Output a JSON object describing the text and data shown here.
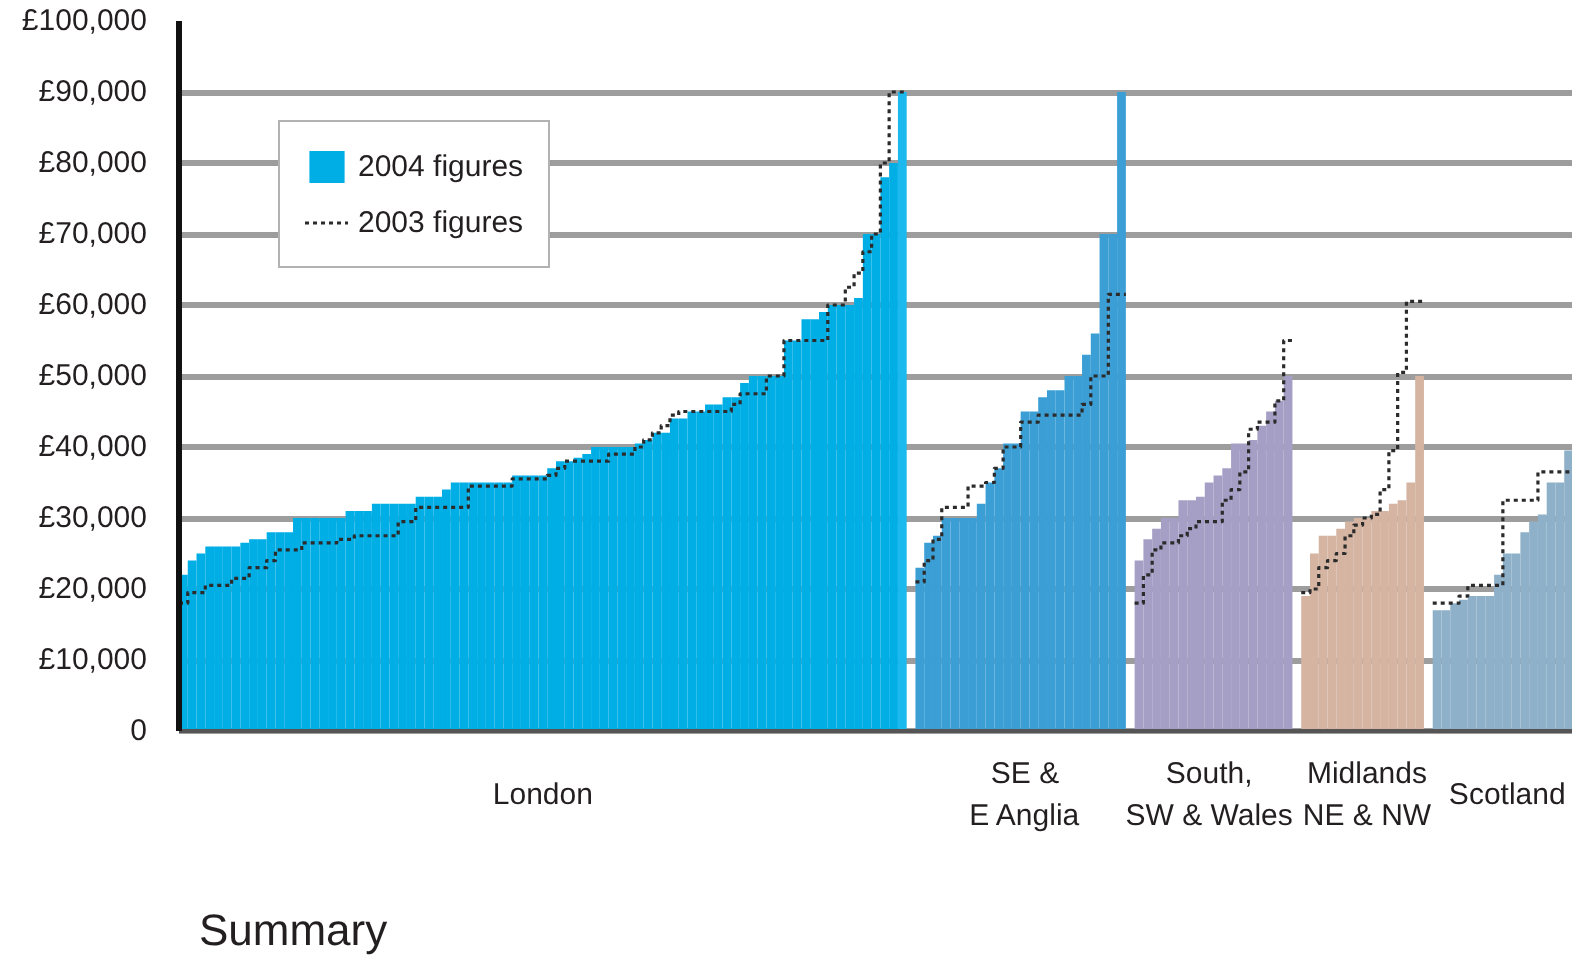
{
  "chart_data": {
    "type": "bar",
    "categories": [
      null,
      null,
      null,
      null,
      null,
      null,
      null,
      null,
      null,
      null,
      null,
      null,
      null,
      null,
      null,
      null,
      null,
      null,
      null,
      null,
      null,
      null,
      null,
      null,
      null,
      null,
      null,
      null,
      null,
      null,
      null,
      null,
      null,
      null,
      null,
      null,
      null,
      null,
      null,
      null,
      null,
      "London",
      null,
      null,
      null,
      null,
      null,
      null,
      null,
      null,
      null,
      null,
      null,
      null,
      null,
      null,
      null,
      null,
      null,
      null,
      null,
      null,
      null,
      null,
      null,
      null,
      null,
      null,
      null,
      null,
      null,
      null,
      null,
      null,
      null,
      null,
      null,
      null,
      null,
      null,
      null,
      null,
      null,
      null,
      null,
      null,
      null,
      null,
      null,
      null,
      null,
      null,
      null,
      null,
      null,
      null,
      "SE &\nE Anglia",
      null,
      null,
      null,
      null,
      null,
      null,
      null,
      null,
      null,
      null,
      null,
      null,
      null,
      null,
      null,
      null,
      null,
      null,
      null,
      null,
      "South,\nSW & Wales",
      null,
      null,
      null,
      null,
      null,
      null,
      null,
      null,
      null,
      null,
      null,
      null,
      null,
      null,
      null,
      null,
      null,
      "Midlands\nNE & NW",
      null,
      null,
      null,
      null,
      null,
      null,
      null,
      null,
      null,
      null,
      null,
      null,
      null,
      null,
      null,
      "Scotland",
      null,
      null,
      null,
      null,
      null,
      null,
      null
    ],
    "series": [
      {
        "name": "2004 figures",
        "colors": [
          "#00aee6",
          "#00aee6",
          "#00aee6",
          "#00aee6",
          "#00aee6",
          "#00aee6",
          "#00aee6",
          "#00aee6",
          "#00aee6",
          "#00aee6",
          "#00aee6",
          "#00aee6",
          "#00aee6",
          "#00aee6",
          "#00aee6",
          "#00aee6",
          "#00aee6",
          "#00aee6",
          "#00aee6",
          "#00aee6",
          "#00aee6",
          "#00aee6",
          "#00aee6",
          "#00aee6",
          "#00aee6",
          "#00aee6",
          "#00aee6",
          "#00aee6",
          "#00aee6",
          "#00aee6",
          "#00aee6",
          "#00aee6",
          "#00aee6",
          "#00aee6",
          "#00aee6",
          "#00aee6",
          "#00aee6",
          "#00aee6",
          "#00aee6",
          "#00aee6",
          "#00aee6",
          "#00aee6",
          "#00aee6",
          "#00aee6",
          "#00aee6",
          "#00aee6",
          "#00aee6",
          "#00aee6",
          "#00aee6",
          "#00aee6",
          "#00aee6",
          "#00aee6",
          "#00aee6",
          "#00aee6",
          "#00aee6",
          "#00aee6",
          "#00aee6",
          "#00aee6",
          "#00aee6",
          "#00aee6",
          "#00aee6",
          "#00aee6",
          "#00aee6",
          "#00aee6",
          "#00aee6",
          "#00aee6",
          "#00aee6",
          "#00aee6",
          "#00aee6",
          "#00aee6",
          "#00aee6",
          "#00aee6",
          "#00aee6",
          "#00aee6",
          "#00aee6",
          "#00aee6",
          "#00aee6",
          "#00aee6",
          "#00aee6",
          "#00aee6",
          "#00aee6",
          "#00aee6",
          "#1cb9ee",
          null,
          "#3b9fd5",
          "#3b9fd5",
          "#3b9fd5",
          "#3b9fd5",
          "#3b9fd5",
          "#3b9fd5",
          "#3b9fd5",
          "#3b9fd5",
          "#3b9fd5",
          "#3b9fd5",
          "#3b9fd5",
          "#3b9fd5",
          "#3b9fd5",
          "#3b9fd5",
          "#3b9fd5",
          "#3b9fd5",
          "#3b9fd5",
          "#3b9fd5",
          "#3b9fd5",
          "#3b9fd5",
          "#3b9fd5",
          "#3b9fd5",
          "#3b9fd5",
          "#3b9fd5",
          null,
          "#a59fc6",
          "#a59fc6",
          "#a59fc6",
          "#a59fc6",
          "#a59fc6",
          "#a59fc6",
          "#a59fc6",
          "#a59fc6",
          "#a59fc6",
          "#a59fc6",
          "#a59fc6",
          "#a59fc6",
          "#a59fc6",
          "#a59fc6",
          "#a59fc6",
          "#a59fc6",
          "#a59fc6",
          "#a59fc6",
          null,
          "#d5b4a2",
          "#d5b4a2",
          "#d5b4a2",
          "#d5b4a2",
          "#d5b4a2",
          "#d5b4a2",
          "#d5b4a2",
          "#d5b4a2",
          "#d5b4a2",
          "#d5b4a2",
          "#d5b4a2",
          "#d5b4a2",
          "#d5b4a2",
          "#d5b4a2",
          null,
          "#8eb0c9",
          "#8eb0c9",
          "#8eb0c9",
          "#8eb0c9",
          "#8eb0c9",
          "#8eb0c9",
          "#8eb0c9",
          "#8eb0c9",
          "#8eb0c9",
          "#8eb0c9",
          "#8eb0c9",
          "#8eb0c9",
          "#8eb0c9",
          "#8eb0c9",
          "#8eb0c9",
          "#8eb0c9"
        ],
        "values": [
          22000,
          24000,
          25000,
          26000,
          26000,
          26000,
          26000,
          26500,
          27000,
          27000,
          28000,
          28000,
          28000,
          30000,
          30000,
          30000,
          30000,
          30000,
          30000,
          31000,
          31000,
          31000,
          32000,
          32000,
          32000,
          32000,
          32000,
          33000,
          33000,
          33000,
          34000,
          35000,
          35000,
          35000,
          35000,
          35000,
          35000,
          35000,
          36000,
          36000,
          36000,
          36000,
          37000,
          38000,
          38000,
          38500,
          39000,
          40000,
          40000,
          40000,
          40000,
          40000,
          40500,
          41000,
          42000,
          42000,
          44000,
          44000,
          45000,
          45000,
          46000,
          46000,
          47000,
          47000,
          49000,
          50000,
          50000,
          50000,
          50000,
          55000,
          55000,
          58000,
          58000,
          59000,
          60000,
          60000,
          60000,
          61000,
          70000,
          70000,
          78000,
          80000,
          90000,
          null,
          23000,
          26500,
          27500,
          30000,
          30000,
          30000,
          30000,
          32000,
          35000,
          37000,
          40500,
          40500,
          45000,
          45000,
          47000,
          48000,
          48000,
          50000,
          50000,
          53000,
          56000,
          70000,
          70000,
          90000,
          null,
          24000,
          27000,
          28500,
          30000,
          30000,
          32500,
          32500,
          33000,
          35000,
          36000,
          37000,
          40500,
          40500,
          41000,
          43000,
          45000,
          46500,
          50000,
          null,
          19000,
          25000,
          27500,
          27500,
          28500,
          29500,
          30000,
          30000,
          31000,
          31000,
          32000,
          32500,
          35000,
          50000,
          null,
          17000,
          17000,
          18000,
          18500,
          19000,
          19000,
          19000,
          22000,
          25000,
          25000,
          28000,
          29500,
          30500,
          35000,
          35000,
          39500
        ]
      },
      {
        "name": "2003 figures",
        "type": "step",
        "color": "#2b2b2b",
        "values": [
          18000,
          19500,
          19500,
          20500,
          20500,
          20500,
          21500,
          21500,
          23000,
          23000,
          24000,
          25500,
          25500,
          25500,
          26500,
          26500,
          26500,
          26500,
          27000,
          27000,
          27500,
          27500,
          27500,
          27500,
          27500,
          29500,
          29500,
          31500,
          31500,
          31500,
          31500,
          31500,
          31500,
          34500,
          34500,
          34500,
          34500,
          34500,
          35500,
          35500,
          35500,
          35500,
          36000,
          37000,
          38000,
          38000,
          38000,
          38000,
          38000,
          39000,
          39000,
          39000,
          40000,
          41000,
          42000,
          43000,
          44500,
          45000,
          45000,
          45000,
          45000,
          45000,
          45000,
          46000,
          47500,
          47500,
          47500,
          50000,
          50000,
          55000,
          55000,
          55000,
          55000,
          55000,
          60000,
          60000,
          62500,
          64500,
          67500,
          70000,
          80000,
          90000,
          90000,
          null,
          21000,
          24000,
          27000,
          31500,
          31500,
          31500,
          34500,
          34500,
          35000,
          37000,
          40000,
          40000,
          43500,
          43500,
          44500,
          44500,
          44500,
          44500,
          44500,
          46000,
          50000,
          50000,
          61500,
          61500,
          null,
          18000,
          22000,
          25500,
          26500,
          26500,
          27500,
          28500,
          29500,
          29500,
          29500,
          32500,
          34000,
          36500,
          42500,
          43500,
          43500,
          46500,
          55000,
          null,
          19500,
          20000,
          23000,
          24000,
          25000,
          27500,
          29000,
          30000,
          30500,
          34000,
          39500,
          50500,
          60500,
          60500,
          null,
          18000,
          18000,
          18000,
          19000,
          20500,
          20500,
          20500,
          20500,
          32500,
          32500,
          32500,
          32500,
          36500,
          36500,
          36500,
          36500
        ]
      }
    ],
    "ylim": [
      0,
      100000
    ],
    "yticks": [
      0,
      {
        "value": 10000,
        "label": "£10,000"
      },
      {
        "value": 20000,
        "label": "£20,000"
      },
      {
        "value": 30000,
        "label": "£30,000"
      },
      {
        "value": 40000,
        "label": "£40,000"
      },
      {
        "value": 50000,
        "label": "£50,000"
      },
      {
        "value": 60000,
        "label": "£60,000"
      },
      {
        "value": 70000,
        "label": "£70,000"
      },
      {
        "value": 80000,
        "label": "£80,000"
      },
      {
        "value": 90000,
        "label": "£90,000"
      },
      {
        "value": 100000,
        "label": "£100,000"
      }
    ],
    "grid": "y",
    "legend": "top left",
    "line_style": "dotted",
    "annotations": [
      "Summary"
    ]
  }
}
